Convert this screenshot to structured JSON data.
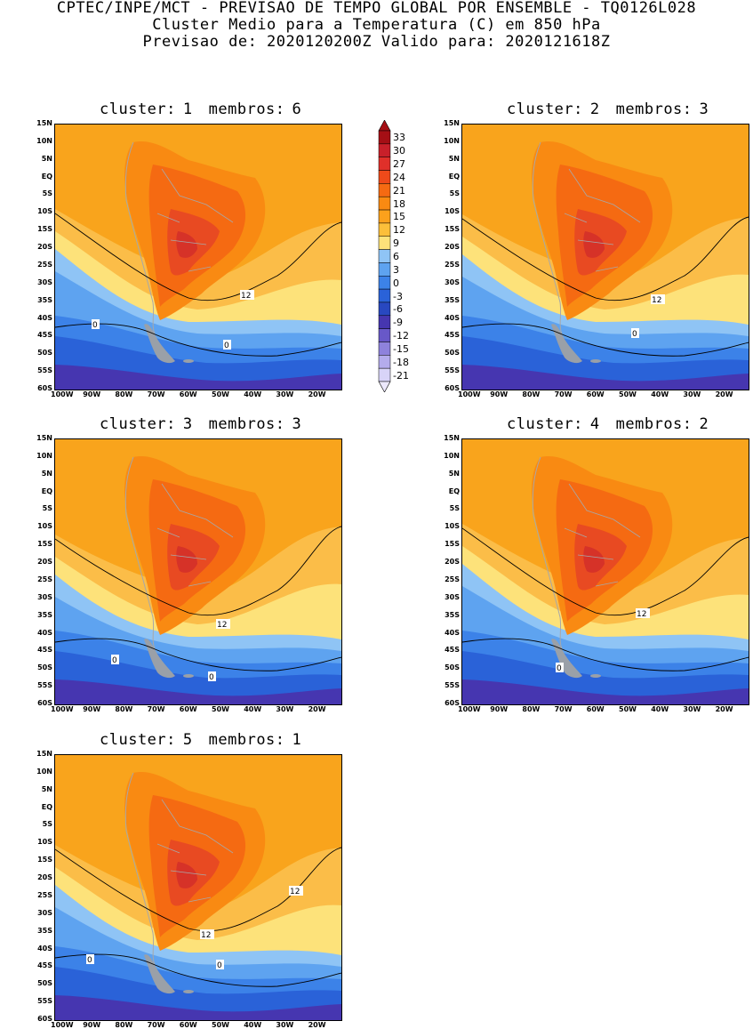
{
  "header": {
    "line1": "CPTEC/INPE/MCT - PREVISAO DE TEMPO GLOBAL POR ENSEMBLE - TQ0126L028",
    "line2": "Cluster Medio para a Temperatura (C) em 850 hPa",
    "line3": "Previsao de: 2020120200Z   Valido para: 2020121618Z"
  },
  "panels": [
    {
      "cluster_label": "cluster:",
      "cluster": "1",
      "membros_label": "membros:",
      "membros": "6",
      "contour_labels": [
        "0",
        "0",
        "12"
      ]
    },
    {
      "cluster_label": "cluster:",
      "cluster": "2",
      "membros_label": "membros:",
      "membros": "3",
      "contour_labels": [
        "0",
        "12"
      ]
    },
    {
      "cluster_label": "cluster:",
      "cluster": "3",
      "membros_label": "membros:",
      "membros": "3",
      "contour_labels": [
        "0",
        "0",
        "12"
      ]
    },
    {
      "cluster_label": "cluster:",
      "cluster": "4",
      "membros_label": "membros:",
      "membros": "2",
      "contour_labels": [
        "0",
        "12"
      ]
    },
    {
      "cluster_label": "cluster:",
      "cluster": "5",
      "membros_label": "membros:",
      "membros": "1",
      "contour_labels": [
        "0",
        "0",
        "12",
        "12"
      ]
    }
  ],
  "lat_labels": [
    "15N",
    "10N",
    "5N",
    "EQ",
    "5S",
    "10S",
    "15S",
    "20S",
    "25S",
    "30S",
    "35S",
    "40S",
    "45S",
    "50S",
    "55S",
    "60S"
  ],
  "lon_labels": [
    "100W",
    "90W",
    "80W",
    "70W",
    "60W",
    "50W",
    "40W",
    "30W",
    "20W"
  ],
  "colorbar": {
    "labels": [
      "33",
      "30",
      "27",
      "24",
      "21",
      "18",
      "15",
      "12",
      "9",
      "6",
      "3",
      "0",
      "-3",
      "-6",
      "-9",
      "-12",
      "-15",
      "-18",
      "-21"
    ],
    "colors": [
      "#a50f15",
      "#c8202a",
      "#e0302a",
      "#ee4a1a",
      "#f56a12",
      "#f98a12",
      "#fba11c",
      "#fcbf3a",
      "#fde27a",
      "#8fc4f5",
      "#5ea3f0",
      "#3c82e8",
      "#2a62d8",
      "#2848c0",
      "#4636b0",
      "#6858c8",
      "#8e82dc",
      "#b4acec",
      "#d8d4f8"
    ]
  }
}
